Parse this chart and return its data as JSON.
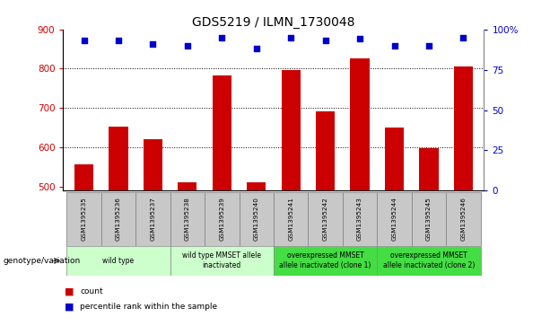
{
  "title": "GDS5219 / ILMN_1730048",
  "samples": [
    "GSM1395235",
    "GSM1395236",
    "GSM1395237",
    "GSM1395238",
    "GSM1395239",
    "GSM1395240",
    "GSM1395241",
    "GSM1395242",
    "GSM1395243",
    "GSM1395244",
    "GSM1395245",
    "GSM1395246"
  ],
  "counts": [
    557,
    652,
    622,
    512,
    783,
    511,
    797,
    692,
    826,
    651,
    597,
    806
  ],
  "percentile_ranks": [
    93,
    93,
    91,
    90,
    95,
    88,
    95,
    93,
    94,
    90,
    90,
    95
  ],
  "ylim_left": [
    490,
    900
  ],
  "ylim_right": [
    0,
    100
  ],
  "yticks_left": [
    500,
    600,
    700,
    800,
    900
  ],
  "yticks_right": [
    0,
    25,
    50,
    75,
    100
  ],
  "bar_color": "#cc0000",
  "dot_color": "#0000cc",
  "groups": [
    {
      "label": "wild type",
      "start": 0,
      "end": 3,
      "bg": "#ccffcc"
    },
    {
      "label": "wild type MMSET allele\ninactivated",
      "start": 3,
      "end": 6,
      "bg": "#ccffcc"
    },
    {
      "label": "overexpressed MMSET\nallele inactivated (clone 1)",
      "start": 6,
      "end": 9,
      "bg": "#44dd44"
    },
    {
      "label": "overexpressed MMSET\nallele inactivated (clone 2)",
      "start": 9,
      "end": 12,
      "bg": "#44dd44"
    }
  ],
  "sample_box_color": "#c8c8c8",
  "sample_box_edge": "#888888",
  "genotype_label": "genotype/variation",
  "title_fontsize": 10,
  "axis_label_color_left": "#cc0000",
  "axis_label_color_right": "#0000cc"
}
